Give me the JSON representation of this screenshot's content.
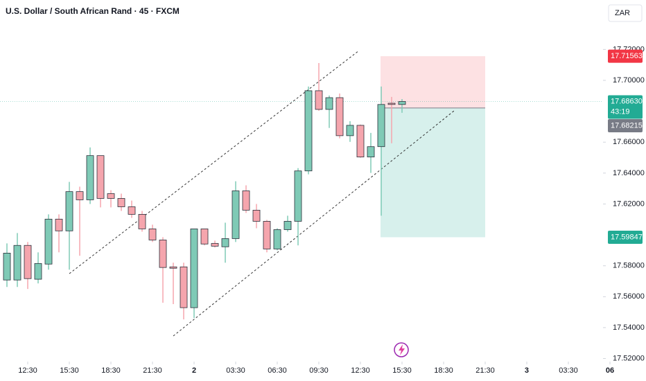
{
  "chart_data": {
    "type": "candlestick",
    "title": "U.S. Dollar / South African Rand · 45 · FXCM",
    "currency": "ZAR",
    "up_color": "#7fcab6",
    "down_color": "#f5a5ad",
    "series": [
      {
        "open": [
          17.5708,
          17.5708,
          17.5932,
          17.5713,
          17.5811,
          17.6102,
          17.6026,
          17.628,
          17.6227,
          17.6513,
          17.6267,
          17.6236,
          17.6182,
          17.6133,
          17.6039,
          17.5967,
          17.5793,
          17.5793,
          17.5529,
          17.6039,
          17.5945,
          17.5923,
          17.5976,
          17.6285,
          17.616,
          17.6088,
          17.5909,
          17.6034,
          17.6088,
          17.6414,
          17.6933,
          17.6812,
          17.6888,
          17.6642,
          17.6709,
          17.6504,
          17.6571,
          17.6852,
          17.6844
        ],
        "high": [
          17.5945,
          17.6012,
          17.5954,
          17.5887,
          17.6133,
          17.6133,
          17.6343,
          17.6312,
          17.6566,
          17.6513,
          17.6289,
          17.6267,
          17.6222,
          17.6155,
          17.6066,
          17.5985,
          17.582,
          17.582,
          17.6039,
          17.6039,
          17.5963,
          17.6079,
          17.6347,
          17.6321,
          17.62,
          17.6097,
          17.6043,
          17.6124,
          17.6432,
          17.696,
          17.7112,
          17.6902,
          17.6915,
          17.6736,
          17.6714,
          17.666,
          17.696,
          17.6893,
          17.6879
        ],
        "low": [
          17.5663,
          17.5663,
          17.565,
          17.5686,
          17.5775,
          17.5887,
          17.5775,
          17.5865,
          17.62,
          17.6178,
          17.6178,
          17.6155,
          17.611,
          17.6021,
          17.5954,
          17.5561,
          17.5552,
          17.5453,
          17.5462,
          17.5932,
          17.5918,
          17.582,
          17.5954,
          17.6142,
          17.6043,
          17.5887,
          17.59,
          17.6021,
          17.5932,
          17.6392,
          17.6803,
          17.6692,
          17.6625,
          17.6602,
          17.6499,
          17.6401,
          17.6124,
          17.6593,
          17.679
        ],
        "close": [
          17.5882,
          17.5932,
          17.5717,
          17.5815,
          17.6102,
          17.6026,
          17.628,
          17.6227,
          17.6513,
          17.6236,
          17.6236,
          17.6182,
          17.6133,
          17.6039,
          17.5967,
          17.5789,
          17.5784,
          17.5529,
          17.6039,
          17.5941,
          17.5927,
          17.5976,
          17.6285,
          17.616,
          17.6088,
          17.5909,
          17.6034,
          17.6088,
          17.6414,
          17.6933,
          17.6812,
          17.6888,
          17.6642,
          17.6709,
          17.6504,
          17.6571,
          17.6844,
          17.6844,
          17.6863
        ]
      }
    ],
    "ylim": [
      17.518,
      17.752
    ],
    "yticks": [
      {
        "value": 17.72,
        "label": "17.72000"
      },
      {
        "value": 17.7,
        "label": "17.70000"
      },
      {
        "value": 17.66,
        "label": "17.66000"
      },
      {
        "value": 17.64,
        "label": "17.64000"
      },
      {
        "value": 17.62,
        "label": "17.62000"
      },
      {
        "value": 17.58,
        "label": "17.58000"
      },
      {
        "value": 17.56,
        "label": "17.56000"
      },
      {
        "value": 17.54,
        "label": "17.54000"
      },
      {
        "value": 17.52,
        "label": "17.52000"
      }
    ],
    "xlim": [
      -0.667,
      61.467
    ],
    "xticks": [
      {
        "value": 2,
        "label": "12:30"
      },
      {
        "value": 6,
        "label": "15:30"
      },
      {
        "value": 10,
        "label": "18:30"
      },
      {
        "value": 14,
        "label": "21:30"
      },
      {
        "value": 18,
        "label": "2"
      },
      {
        "value": 22,
        "label": "03:30"
      },
      {
        "value": 26,
        "label": "06:30"
      },
      {
        "value": 30,
        "label": "09:30"
      },
      {
        "value": 34,
        "label": "12:30"
      },
      {
        "value": 38,
        "label": "15:30"
      },
      {
        "value": 42,
        "label": "18:30"
      },
      {
        "value": 46,
        "label": "21:30"
      },
      {
        "value": 50,
        "label": "3"
      },
      {
        "value": 54,
        "label": "03:30"
      },
      {
        "value": 58,
        "label": "06"
      }
    ],
    "position": {
      "stop": 17.71563,
      "entry": 17.68215,
      "target": 17.59847,
      "stop_color": "#f23645",
      "entry_color": "#787b86",
      "target_color": "#22ab94"
    },
    "last_price": {
      "value": 17.6863,
      "label": "17.68630",
      "countdown": "43:19",
      "color": "#22ab94"
    }
  }
}
